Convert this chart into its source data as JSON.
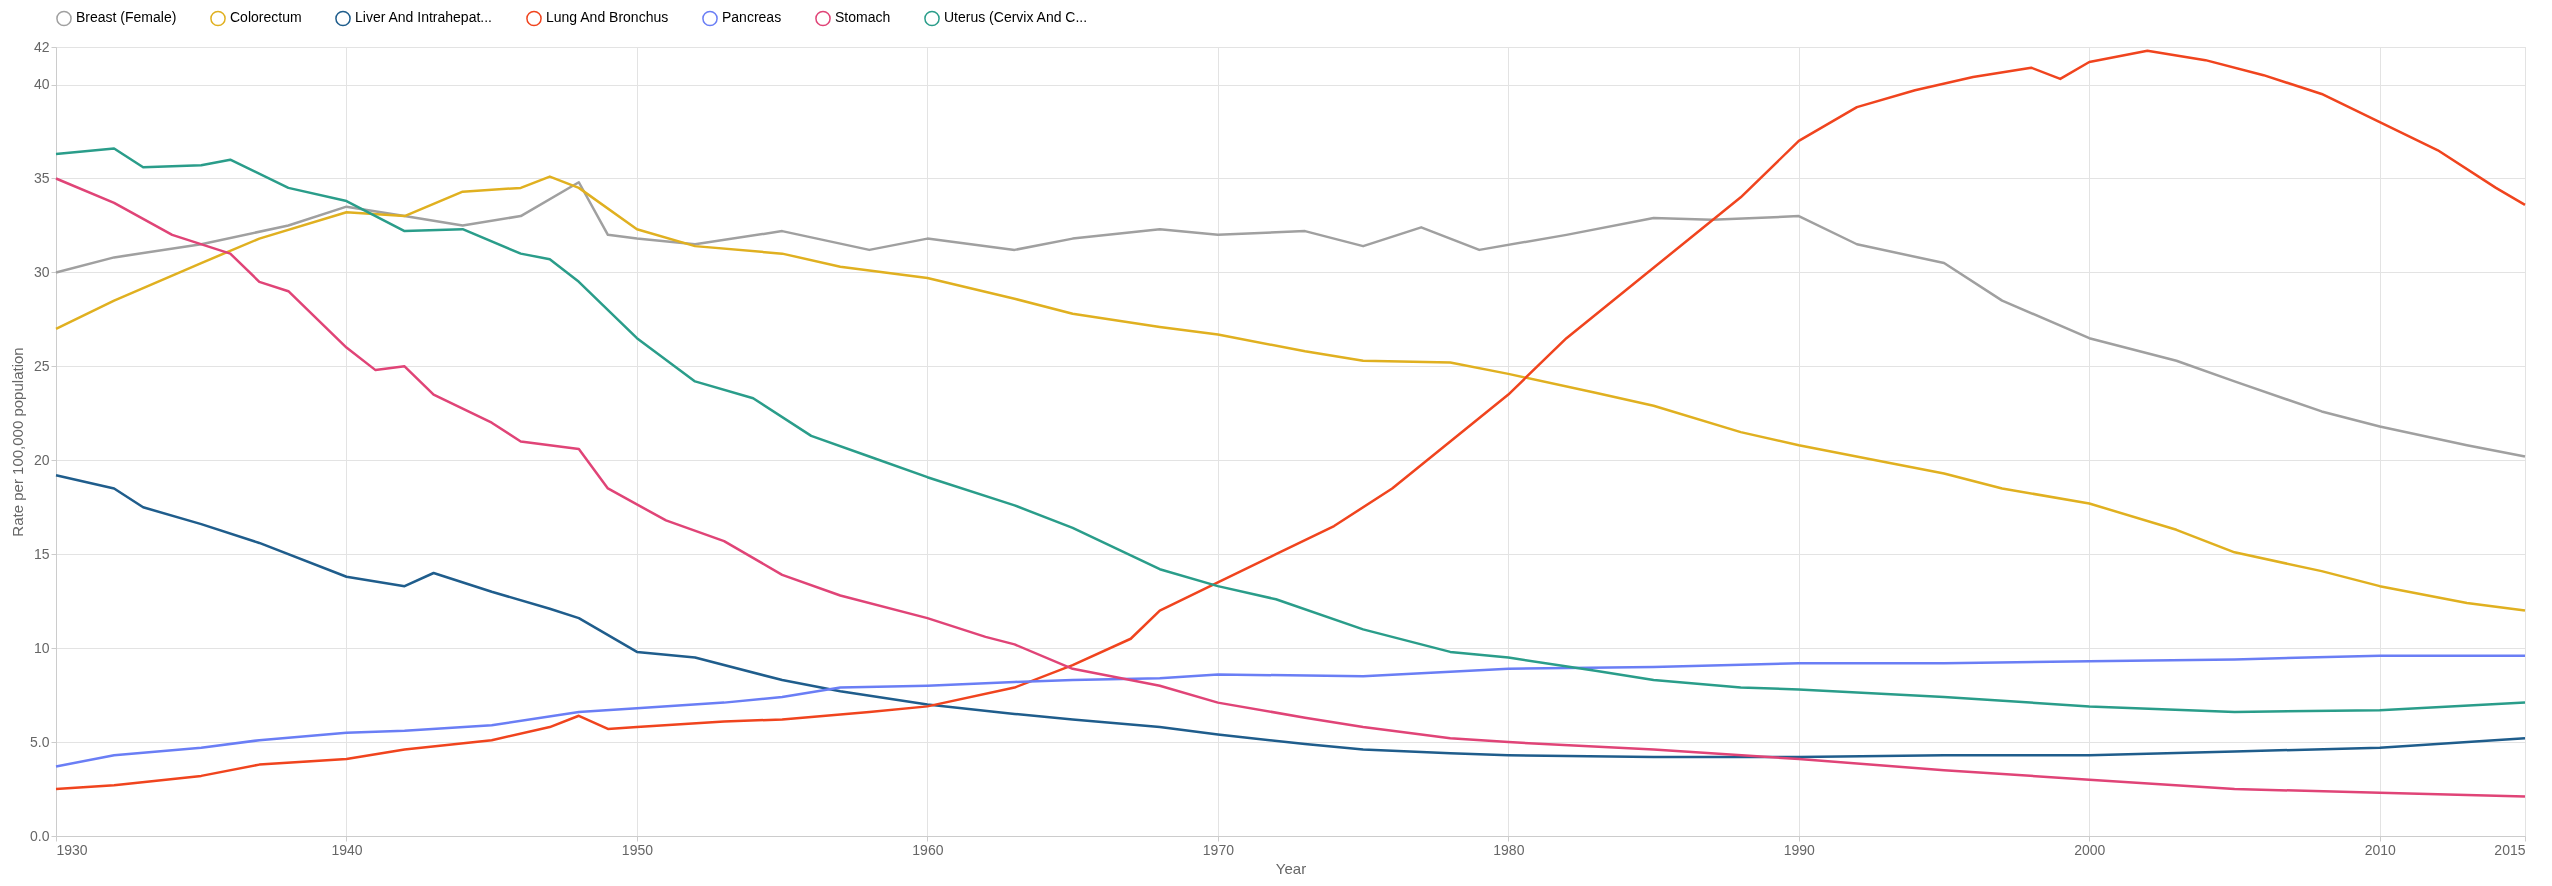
{
  "chart_data": {
    "type": "line",
    "xlabel": "Year",
    "ylabel": "Rate per 100,000 population",
    "xlim": [
      1930,
      2015
    ],
    "ylim": [
      0,
      42
    ],
    "xticks": [
      1930,
      1940,
      1950,
      1960,
      1970,
      1980,
      1990,
      2000,
      2010,
      2015
    ],
    "yticks": [
      {
        "value": 0,
        "label": "0.0"
      },
      {
        "value": 5,
        "label": "5.0"
      },
      10,
      15,
      20,
      25,
      30,
      35,
      40,
      42
    ],
    "grid": true,
    "legend": "top",
    "marker": "none",
    "line_style": "solid",
    "series": [
      {
        "name": "Breast (Female)",
        "color": "#a0a0a0",
        "x": [
          1930,
          1932,
          1935,
          1938,
          1940,
          1942,
          1944,
          1946,
          1948,
          1949,
          1950,
          1952,
          1955,
          1958,
          1960,
          1963,
          1965,
          1968,
          1970,
          1973,
          1975,
          1977,
          1979,
          1982,
          1985,
          1987,
          1990,
          1992,
          1995,
          1997,
          2000,
          2003,
          2005,
          2008,
          2010,
          2013,
          2015
        ],
        "values": [
          30,
          30.8,
          31.5,
          32.5,
          33.5,
          33,
          32.5,
          33,
          34.8,
          32,
          31.8,
          31.5,
          32.2,
          31.2,
          31.8,
          31.2,
          31.8,
          32.3,
          32,
          32.2,
          31.4,
          32.4,
          31.2,
          32,
          32.9,
          32.8,
          33,
          31.5,
          30.5,
          28.5,
          26.5,
          25.3,
          24.2,
          22.6,
          21.8,
          20.8,
          20.2
        ]
      },
      {
        "name": "Colorectum",
        "color": "#e0b020",
        "x": [
          1930,
          1932,
          1935,
          1937,
          1940,
          1942,
          1944,
          1946,
          1947,
          1948,
          1950,
          1952,
          1955,
          1957,
          1960,
          1963,
          1965,
          1968,
          1970,
          1973,
          1975,
          1978,
          1980,
          1983,
          1985,
          1988,
          1990,
          1993,
          1995,
          1997,
          2000,
          2003,
          2005,
          2008,
          2010,
          2013,
          2015
        ],
        "values": [
          27,
          28.5,
          30.5,
          31.8,
          33.2,
          33,
          34.3,
          34.5,
          35.1,
          34.5,
          32.3,
          31.4,
          31,
          30.3,
          29.7,
          28.6,
          27.8,
          27.1,
          26.7,
          25.8,
          25.3,
          25.2,
          24.6,
          23.6,
          22.9,
          21.5,
          20.8,
          19.9,
          19.3,
          18.5,
          17.7,
          16.3,
          15.1,
          14.1,
          13.3,
          12.4,
          12
        ]
      },
      {
        "name": "Liver And Intrahepat...",
        "color": "#1f5d8c",
        "x": [
          1930,
          1932,
          1933,
          1935,
          1937,
          1940,
          1942,
          1943,
          1945,
          1947,
          1948,
          1950,
          1952,
          1955,
          1957,
          1960,
          1963,
          1965,
          1968,
          1970,
          1973,
          1975,
          1978,
          1980,
          1985,
          1990,
          1995,
          2000,
          2005,
          2010,
          2015
        ],
        "values": [
          19.2,
          18.5,
          17.5,
          16.6,
          15.6,
          13.8,
          13.3,
          14,
          13,
          12.1,
          11.6,
          9.8,
          9.5,
          8.3,
          7.7,
          7,
          6.5,
          6.2,
          5.8,
          5.4,
          4.9,
          4.6,
          4.4,
          4.3,
          4.2,
          4.2,
          4.3,
          4.3,
          4.5,
          4.7,
          5.2
        ]
      },
      {
        "name": "Lung And Bronchus",
        "color": "#f0441e",
        "x": [
          1930,
          1932,
          1935,
          1937,
          1940,
          1942,
          1945,
          1947,
          1948,
          1949,
          1950,
          1953,
          1955,
          1958,
          1960,
          1963,
          1965,
          1967,
          1968,
          1970,
          1972,
          1974,
          1976,
          1978,
          1980,
          1982,
          1984,
          1986,
          1988,
          1990,
          1992,
          1994,
          1996,
          1998,
          1999,
          2000,
          2002,
          2004,
          2006,
          2008,
          2010,
          2012,
          2014,
          2015
        ],
        "values": [
          2.5,
          2.7,
          3.2,
          3.8,
          4.1,
          4.6,
          5.1,
          5.8,
          6.4,
          5.7,
          5.8,
          6.1,
          6.2,
          6.6,
          6.9,
          7.9,
          9.1,
          10.5,
          12,
          13.5,
          15,
          16.5,
          18.5,
          21,
          23.5,
          26.5,
          29,
          31.5,
          34,
          37,
          38.8,
          39.7,
          40.4,
          40.9,
          40.3,
          41.2,
          41.8,
          41.3,
          40.5,
          39.5,
          38,
          36.5,
          34.5,
          33.6
        ]
      },
      {
        "name": "Pancreas",
        "color": "#6a7ef5",
        "x": [
          1930,
          1932,
          1935,
          1937,
          1940,
          1942,
          1945,
          1948,
          1950,
          1953,
          1955,
          1957,
          1960,
          1963,
          1965,
          1968,
          1970,
          1975,
          1980,
          1985,
          1990,
          1995,
          2000,
          2005,
          2010,
          2015
        ],
        "values": [
          3.7,
          4.3,
          4.7,
          5.1,
          5.5,
          5.6,
          5.9,
          6.6,
          6.8,
          7.1,
          7.4,
          7.9,
          8,
          8.2,
          8.3,
          8.4,
          8.6,
          8.5,
          8.9,
          9,
          9.2,
          9.2,
          9.3,
          9.4,
          9.6,
          9.6
        ]
      },
      {
        "name": "Stomach",
        "color": "#e04477",
        "x": [
          1930,
          1932,
          1934,
          1936,
          1937,
          1938,
          1940,
          1941,
          1942,
          1943,
          1945,
          1946,
          1948,
          1949,
          1951,
          1953,
          1955,
          1957,
          1960,
          1962,
          1963,
          1965,
          1968,
          1970,
          1973,
          1975,
          1978,
          1980,
          1985,
          1990,
          1995,
          2000,
          2005,
          2010,
          2015
        ],
        "values": [
          35,
          33.7,
          32,
          31,
          29.5,
          29,
          26,
          24.8,
          25,
          23.5,
          22,
          21,
          20.6,
          18.5,
          16.8,
          15.7,
          13.9,
          12.8,
          11.6,
          10.6,
          10.2,
          8.9,
          8,
          7.1,
          6.3,
          5.8,
          5.2,
          5,
          4.6,
          4.1,
          3.5,
          3,
          2.5,
          2.3,
          2.1
        ]
      },
      {
        "name": "Uterus (Cervix And C...",
        "color": "#2a9d8a",
        "x": [
          1930,
          1932,
          1933,
          1935,
          1936,
          1938,
          1940,
          1942,
          1944,
          1946,
          1947,
          1948,
          1950,
          1952,
          1954,
          1956,
          1958,
          1960,
          1963,
          1965,
          1968,
          1970,
          1972,
          1975,
          1978,
          1980,
          1983,
          1985,
          1988,
          1990,
          1995,
          2000,
          2005,
          2010,
          2015
        ],
        "values": [
          36.3,
          36.6,
          35.6,
          35.7,
          36,
          34.5,
          33.8,
          32.2,
          32.3,
          31,
          30.7,
          29.5,
          26.5,
          24.2,
          23.3,
          21.3,
          20.2,
          19.1,
          17.6,
          16.4,
          14.2,
          13.3,
          12.6,
          11,
          9.8,
          9.5,
          8.8,
          8.3,
          7.9,
          7.8,
          7.4,
          6.9,
          6.6,
          6.7,
          7.1
        ]
      }
    ]
  }
}
